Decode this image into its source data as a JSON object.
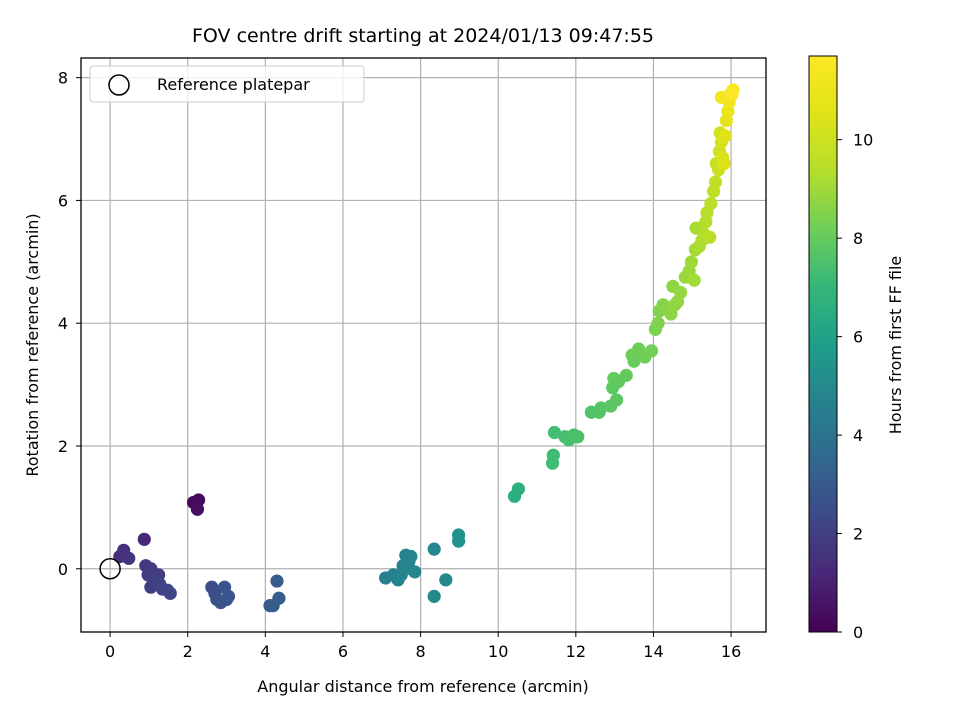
{
  "chart_data": {
    "type": "scatter",
    "title": "FOV centre drift starting at 2024/01/13 09:47:55",
    "xlabel": "Angular distance from reference (arcmin)",
    "ylabel": "Rotation from reference (arcmin)",
    "colorbar_label": "Hours from first FF file",
    "xlim": [
      -0.75,
      16.9
    ],
    "ylim": [
      -1.03,
      8.32
    ],
    "clim": [
      0,
      11.7
    ],
    "xticks": [
      0,
      2,
      4,
      6,
      8,
      10,
      12,
      14,
      16
    ],
    "yticks": [
      0,
      2,
      4,
      6,
      8
    ],
    "cticks": [
      0,
      2,
      4,
      6,
      8,
      10
    ],
    "grid": true,
    "colormap": "viridis",
    "legend": {
      "placement": "top-left",
      "entries": [
        {
          "label": "Reference platepar",
          "marker": "open-circle"
        }
      ]
    },
    "reference_point": {
      "x": 0,
      "y": 0
    },
    "points": [
      {
        "x": 2.15,
        "y": 1.08,
        "t": 0.2
      },
      {
        "x": 2.28,
        "y": 1.12,
        "t": 0.3
      },
      {
        "x": 2.25,
        "y": 0.97,
        "t": 0.4
      },
      {
        "x": 0.88,
        "y": 0.48,
        "t": 1.2
      },
      {
        "x": 0.25,
        "y": 0.2,
        "t": 1.4
      },
      {
        "x": 0.35,
        "y": 0.3,
        "t": 1.5
      },
      {
        "x": 0.48,
        "y": 0.17,
        "t": 1.6
      },
      {
        "x": 0.92,
        "y": 0.05,
        "t": 1.7
      },
      {
        "x": 1.05,
        "y": 0.0,
        "t": 1.8
      },
      {
        "x": 0.98,
        "y": -0.1,
        "t": 1.85
      },
      {
        "x": 1.25,
        "y": -0.1,
        "t": 1.9
      },
      {
        "x": 1.15,
        "y": -0.2,
        "t": 1.95
      },
      {
        "x": 1.05,
        "y": -0.3,
        "t": 2.0
      },
      {
        "x": 1.28,
        "y": -0.25,
        "t": 2.05
      },
      {
        "x": 1.35,
        "y": -0.33,
        "t": 2.1
      },
      {
        "x": 1.48,
        "y": -0.35,
        "t": 2.15
      },
      {
        "x": 1.55,
        "y": -0.4,
        "t": 2.2
      },
      {
        "x": 2.62,
        "y": -0.3,
        "t": 2.5
      },
      {
        "x": 2.7,
        "y": -0.4,
        "t": 2.55
      },
      {
        "x": 2.75,
        "y": -0.5,
        "t": 2.6
      },
      {
        "x": 2.85,
        "y": -0.55,
        "t": 2.65
      },
      {
        "x": 2.95,
        "y": -0.3,
        "t": 2.7
      },
      {
        "x": 3.0,
        "y": -0.5,
        "t": 2.75
      },
      {
        "x": 3.05,
        "y": -0.45,
        "t": 2.8
      },
      {
        "x": 4.12,
        "y": -0.6,
        "t": 3.0
      },
      {
        "x": 4.2,
        "y": -0.6,
        "t": 3.05
      },
      {
        "x": 4.3,
        "y": -0.2,
        "t": 3.1
      },
      {
        "x": 4.35,
        "y": -0.48,
        "t": 3.15
      },
      {
        "x": 7.1,
        "y": -0.15,
        "t": 4.5
      },
      {
        "x": 7.3,
        "y": -0.1,
        "t": 4.6
      },
      {
        "x": 7.42,
        "y": -0.18,
        "t": 4.65
      },
      {
        "x": 7.5,
        "y": -0.1,
        "t": 4.7
      },
      {
        "x": 7.55,
        "y": 0.05,
        "t": 4.72
      },
      {
        "x": 7.62,
        "y": 0.22,
        "t": 4.75
      },
      {
        "x": 7.7,
        "y": 0.12,
        "t": 4.78
      },
      {
        "x": 7.75,
        "y": 0.2,
        "t": 4.8
      },
      {
        "x": 7.62,
        "y": 0.0,
        "t": 4.82
      },
      {
        "x": 7.85,
        "y": -0.05,
        "t": 4.85
      },
      {
        "x": 8.35,
        "y": 0.32,
        "t": 4.9
      },
      {
        "x": 8.35,
        "y": -0.45,
        "t": 4.92
      },
      {
        "x": 8.65,
        "y": -0.18,
        "t": 4.95
      },
      {
        "x": 8.98,
        "y": 0.55,
        "t": 5.3
      },
      {
        "x": 8.98,
        "y": 0.45,
        "t": 5.35
      },
      {
        "x": 10.42,
        "y": 1.18,
        "t": 6.6
      },
      {
        "x": 10.52,
        "y": 1.3,
        "t": 6.65
      },
      {
        "x": 11.42,
        "y": 1.85,
        "t": 7.2
      },
      {
        "x": 11.4,
        "y": 1.72,
        "t": 7.25
      },
      {
        "x": 11.45,
        "y": 2.22,
        "t": 7.3
      },
      {
        "x": 11.72,
        "y": 2.15,
        "t": 7.35
      },
      {
        "x": 11.82,
        "y": 2.1,
        "t": 7.4
      },
      {
        "x": 11.95,
        "y": 2.18,
        "t": 7.45
      },
      {
        "x": 12.05,
        "y": 2.15,
        "t": 7.5
      },
      {
        "x": 12.4,
        "y": 2.55,
        "t": 7.6
      },
      {
        "x": 12.6,
        "y": 2.55,
        "t": 7.65
      },
      {
        "x": 12.65,
        "y": 2.62,
        "t": 7.7
      },
      {
        "x": 12.9,
        "y": 2.65,
        "t": 7.75
      },
      {
        "x": 13.05,
        "y": 2.75,
        "t": 7.8
      },
      {
        "x": 12.95,
        "y": 2.95,
        "t": 7.85
      },
      {
        "x": 13.1,
        "y": 3.05,
        "t": 7.9
      },
      {
        "x": 12.98,
        "y": 3.1,
        "t": 7.95
      },
      {
        "x": 13.3,
        "y": 3.15,
        "t": 8.0
      },
      {
        "x": 13.5,
        "y": 3.38,
        "t": 8.05
      },
      {
        "x": 13.45,
        "y": 3.48,
        "t": 8.1
      },
      {
        "x": 13.62,
        "y": 3.58,
        "t": 8.15
      },
      {
        "x": 13.78,
        "y": 3.45,
        "t": 8.2
      },
      {
        "x": 13.95,
        "y": 3.55,
        "t": 8.25
      },
      {
        "x": 14.05,
        "y": 3.9,
        "t": 8.4
      },
      {
        "x": 14.12,
        "y": 4.0,
        "t": 8.45
      },
      {
        "x": 14.15,
        "y": 4.2,
        "t": 8.5
      },
      {
        "x": 14.25,
        "y": 4.3,
        "t": 8.55
      },
      {
        "x": 14.35,
        "y": 4.25,
        "t": 8.6
      },
      {
        "x": 14.45,
        "y": 4.15,
        "t": 8.65
      },
      {
        "x": 14.5,
        "y": 4.6,
        "t": 8.7
      },
      {
        "x": 14.55,
        "y": 4.3,
        "t": 8.75
      },
      {
        "x": 14.62,
        "y": 4.35,
        "t": 8.8
      },
      {
        "x": 14.7,
        "y": 4.5,
        "t": 8.85
      },
      {
        "x": 14.82,
        "y": 4.75,
        "t": 8.9
      },
      {
        "x": 14.92,
        "y": 4.85,
        "t": 8.95
      },
      {
        "x": 14.98,
        "y": 5.0,
        "t": 9.0
      },
      {
        "x": 15.05,
        "y": 4.7,
        "t": 9.05
      },
      {
        "x": 15.08,
        "y": 5.2,
        "t": 9.1
      },
      {
        "x": 15.1,
        "y": 5.55,
        "t": 9.15
      },
      {
        "x": 15.18,
        "y": 5.25,
        "t": 9.2
      },
      {
        "x": 15.25,
        "y": 5.35,
        "t": 9.25
      },
      {
        "x": 15.3,
        "y": 5.45,
        "t": 9.3
      },
      {
        "x": 15.35,
        "y": 5.65,
        "t": 9.35
      },
      {
        "x": 15.38,
        "y": 5.8,
        "t": 9.4
      },
      {
        "x": 15.45,
        "y": 5.4,
        "t": 9.45
      },
      {
        "x": 15.48,
        "y": 5.95,
        "t": 9.5
      },
      {
        "x": 15.55,
        "y": 6.15,
        "t": 9.6
      },
      {
        "x": 15.6,
        "y": 6.3,
        "t": 9.7
      },
      {
        "x": 15.62,
        "y": 6.6,
        "t": 9.8
      },
      {
        "x": 15.68,
        "y": 6.5,
        "t": 9.9
      },
      {
        "x": 15.7,
        "y": 6.8,
        "t": 10.0
      },
      {
        "x": 15.72,
        "y": 7.1,
        "t": 10.2
      },
      {
        "x": 15.75,
        "y": 6.95,
        "t": 10.3
      },
      {
        "x": 15.78,
        "y": 6.7,
        "t": 10.4
      },
      {
        "x": 15.82,
        "y": 6.6,
        "t": 10.5
      },
      {
        "x": 15.85,
        "y": 7.05,
        "t": 10.6
      },
      {
        "x": 15.88,
        "y": 7.3,
        "t": 10.8
      },
      {
        "x": 15.92,
        "y": 7.45,
        "t": 11.0
      },
      {
        "x": 15.95,
        "y": 7.6,
        "t": 11.2
      },
      {
        "x": 15.75,
        "y": 7.68,
        "t": 11.3
      },
      {
        "x": 16.0,
        "y": 7.75,
        "t": 11.5
      },
      {
        "x": 16.05,
        "y": 7.8,
        "t": 11.6
      },
      {
        "x": 16.02,
        "y": 7.72,
        "t": 11.65
      }
    ]
  }
}
